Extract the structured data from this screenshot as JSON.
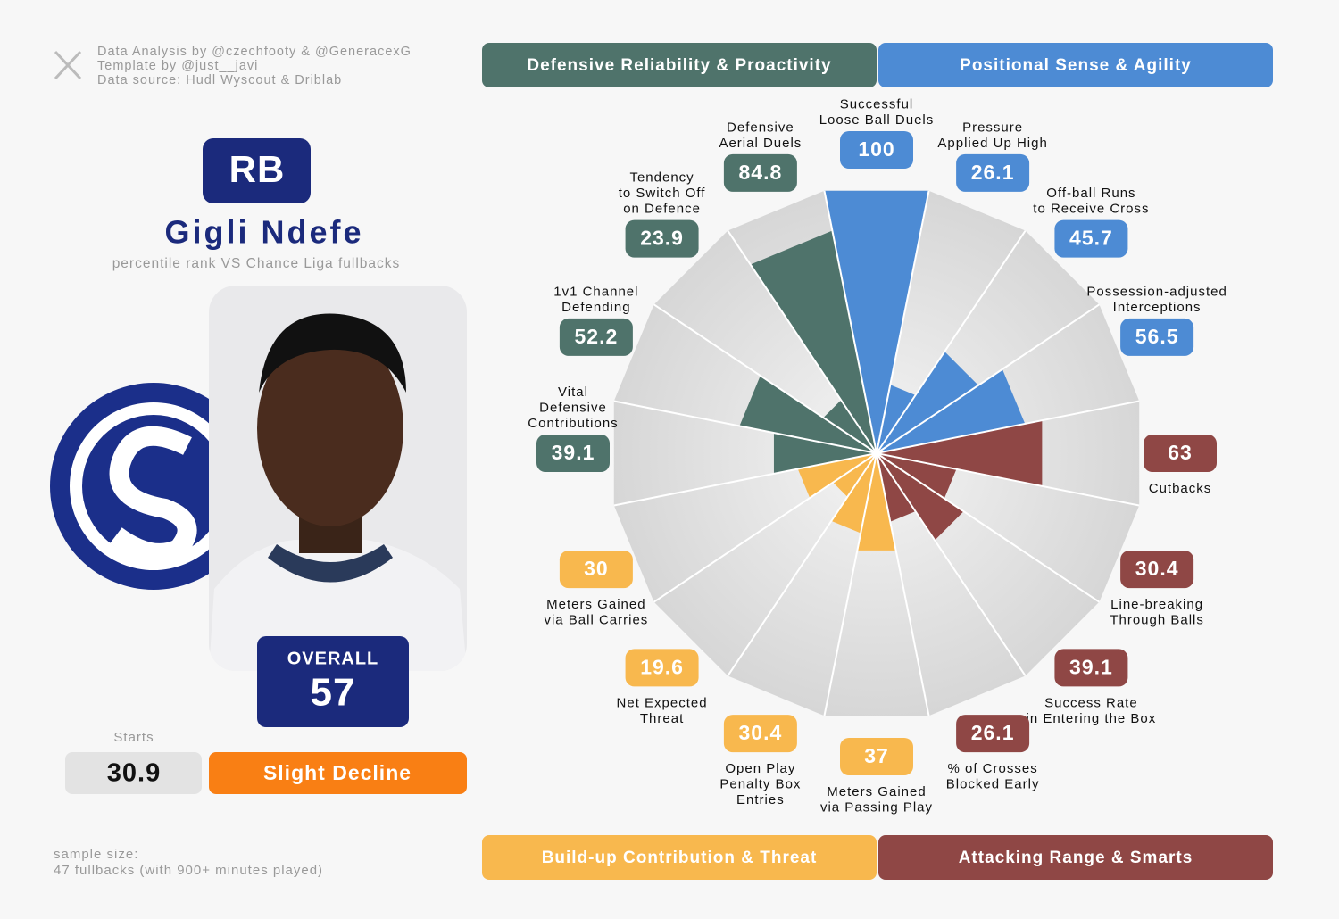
{
  "credits": [
    "Data Analysis by @czechfooty & @GeneracexG",
    "Template by @just__javi",
    "Data source: Hudl Wyscout & Driblab"
  ],
  "player": {
    "position": "RB",
    "name": "Gigli Ndefe",
    "subtitle": "percentile rank VS Chance Liga fullbacks",
    "overall_label": "OVERALL",
    "overall": 57,
    "starts_label": "Starts",
    "starts": 30.9,
    "trend": "Slight Decline"
  },
  "sample_size": [
    "sample size:",
    "47 fullbacks (with 900+ minutes played)"
  ],
  "chart_data": {
    "type": "pizza",
    "groups": [
      {
        "name": "Defensive Reliability & Proactivity",
        "color": "#4f736b"
      },
      {
        "name": "Positional Sense & Agility",
        "color": "#4d8bd4"
      },
      {
        "name": "Build-up Contribution & Threat",
        "color": "#f8b84e"
      },
      {
        "name": "Attacking Range & Smarts",
        "color": "#8f4745"
      }
    ],
    "categories": [
      [
        "Successful",
        "Loose Ball Duels"
      ],
      [
        "Pressure",
        "Applied Up High"
      ],
      [
        "Off-ball Runs",
        "to Receive Cross"
      ],
      [
        "Possession-adjusted",
        "Interceptions"
      ],
      [
        "Cutbacks"
      ],
      [
        "Line-breaking",
        "Through Balls"
      ],
      [
        "Success Rate",
        "in Entering the Box"
      ],
      [
        "% of Crosses",
        "Blocked Early"
      ],
      [
        "Meters Gained",
        "via Passing Play"
      ],
      [
        "Open Play",
        "Penalty Box",
        "Entries"
      ],
      [
        "Net Expected",
        "Threat"
      ],
      [
        "Meters Gained",
        "via Ball Carries"
      ],
      [
        "Vital",
        "Defensive",
        "Contributions"
      ],
      [
        "1v1 Channel",
        "Defending"
      ],
      [
        "Tendency",
        "to Switch Off",
        "on Defence"
      ],
      [
        "Defensive",
        "Aerial Duels"
      ]
    ],
    "values": [
      100,
      26.1,
      45.7,
      56.5,
      63,
      30.4,
      39.1,
      26.1,
      37,
      30.4,
      19.6,
      30,
      39.1,
      52.2,
      23.9,
      84.8
    ],
    "colors": [
      "#4d8bd4",
      "#4d8bd4",
      "#4d8bd4",
      "#4d8bd4",
      "#8f4745",
      "#8f4745",
      "#8f4745",
      "#8f4745",
      "#f8b84e",
      "#f8b84e",
      "#f8b84e",
      "#f8b84e",
      "#4f736b",
      "#4f736b",
      "#4f736b",
      "#4f736b"
    ]
  }
}
